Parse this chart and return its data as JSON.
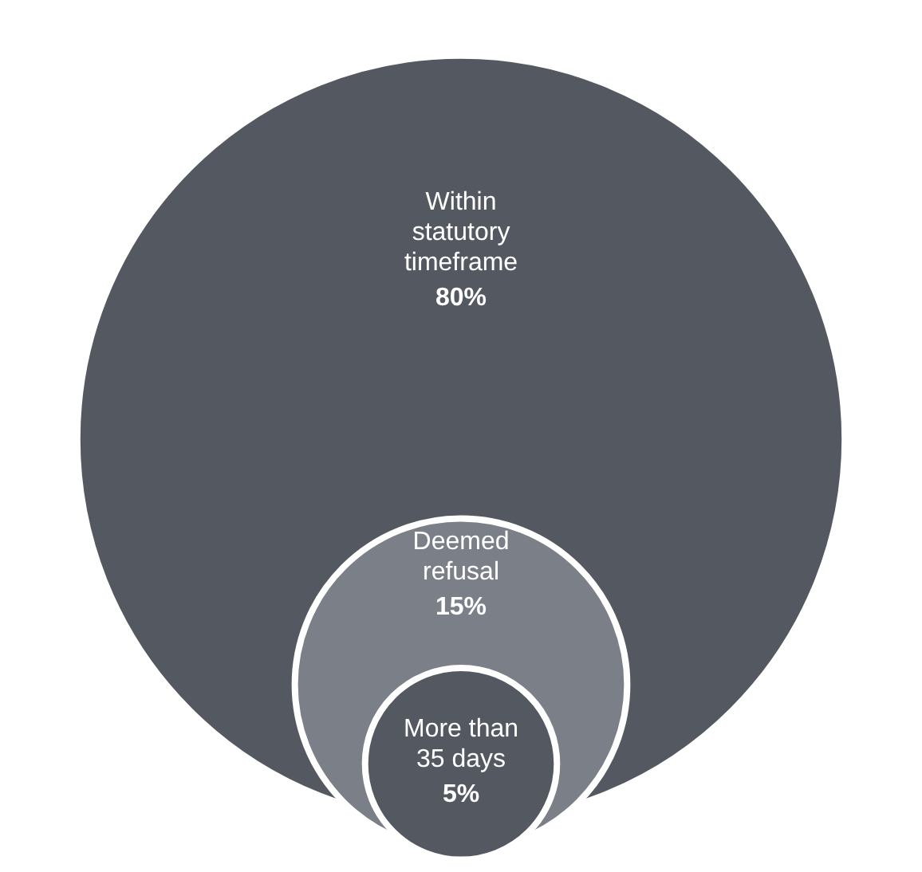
{
  "chart_data": {
    "type": "other",
    "categories": [
      "Within\nstatutory\ntimeframe",
      "Deemed\nrefusal",
      "More than\n35 days"
    ],
    "values": [
      80,
      15,
      5
    ],
    "value_labels": [
      "80%",
      "15%",
      "5%"
    ],
    "colors": [
      "#545861",
      "#7b7f87",
      "#545861"
    ]
  }
}
